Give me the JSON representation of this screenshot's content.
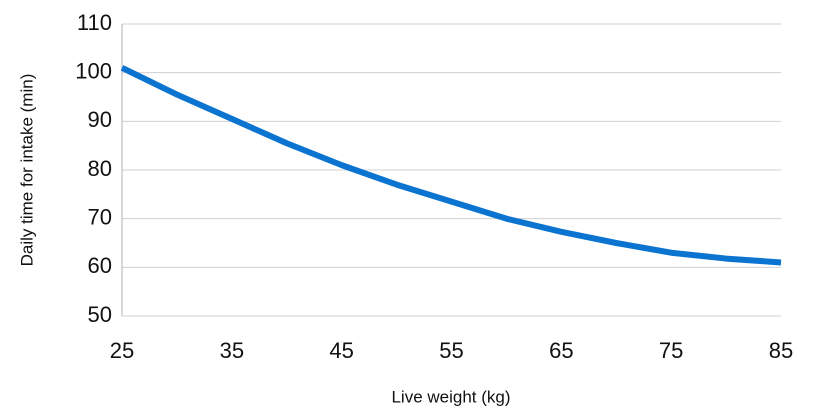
{
  "chart_data": {
    "type": "line",
    "x_label": "Live weight (kg)",
    "y_label": "Daily time for intake (min)",
    "x": [
      25,
      30,
      35,
      40,
      45,
      50,
      55,
      60,
      65,
      70,
      75,
      80,
      85
    ],
    "series": [
      {
        "color": "#0b74d1",
        "values": [
          101,
          95.5,
          90.5,
          85.5,
          81,
          77,
          73.5,
          70,
          67.3,
          65,
          63,
          61.8,
          61
        ]
      }
    ],
    "xlim": [
      25,
      85
    ],
    "xticks": [
      25,
      35,
      45,
      55,
      65,
      75,
      85
    ],
    "ylim": [
      50,
      110
    ],
    "yticks": [
      50,
      60,
      70,
      80,
      90,
      100,
      110
    ],
    "grid": true
  }
}
